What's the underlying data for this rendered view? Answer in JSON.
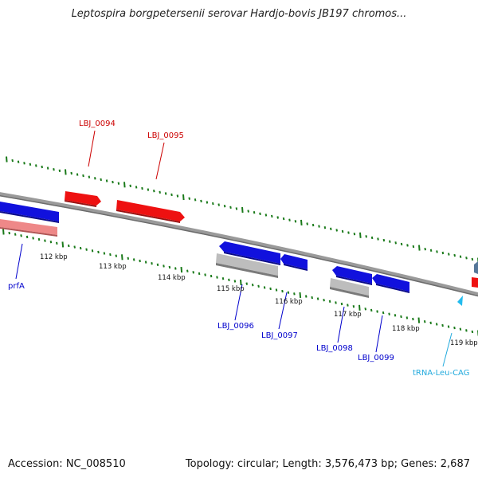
{
  "title": "Leptospira borgpetersenii serovar Hardjo-bovis JB197 chromos...",
  "footer": {
    "accession": "Accession: NC_008510",
    "summary": "Topology: circular; Length: 3,576,473 bp; Genes: 2,687"
  },
  "colors": {
    "backbone": "#808080",
    "tick": "#1a7a1a",
    "gene_forward": "#ee1111",
    "gene_reverse": "#1111dd",
    "pseudo_forward": "#ee8888",
    "pseudo_reverse": "#bdbdbd",
    "trna": "#22bbee",
    "label_forward": "#cc0000",
    "label_reverse": "#0000cc",
    "label_trna": "#22aadd"
  },
  "ticks": [
    "112 kbp",
    "113 kbp",
    "114 kbp",
    "115 kbp",
    "116 kbp",
    "117 kbp",
    "118 kbp",
    "119 kbp"
  ],
  "genes": [
    {
      "label": "LBJ_0094",
      "strand": "forward"
    },
    {
      "label": "LBJ_0095",
      "strand": "forward"
    },
    {
      "label": "prfA",
      "strand": "reverse"
    },
    {
      "label": "LBJ_0096",
      "strand": "reverse"
    },
    {
      "label": "LBJ_0097",
      "strand": "reverse"
    },
    {
      "label": "LBJ_0098",
      "strand": "reverse"
    },
    {
      "label": "LBJ_0099",
      "strand": "reverse"
    },
    {
      "label": "tRNA-Leu-CAG",
      "strand": "reverse"
    }
  ]
}
